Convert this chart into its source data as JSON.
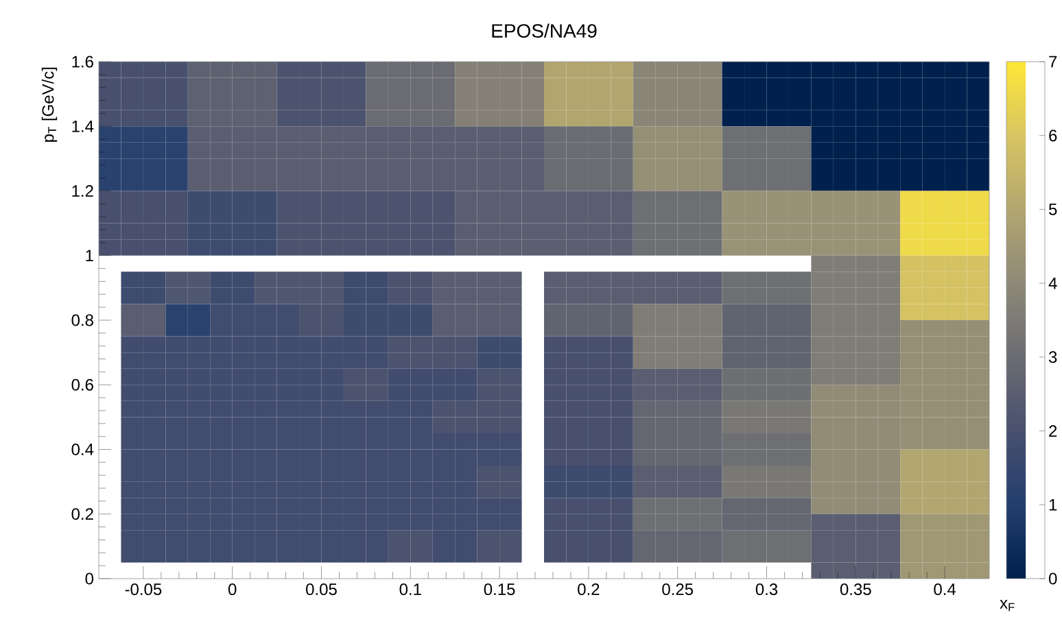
{
  "chart_data": {
    "type": "heatmap",
    "title": "EPOS/NA49",
    "xlabel": "x$_{F}$",
    "ylabel": "p$_{T}$ [GeV/c]",
    "xlim": [
      -0.075,
      0.425
    ],
    "xticks": [
      -0.05,
      0,
      0.05,
      0.1,
      0.15,
      0.2,
      0.25,
      0.3,
      0.35,
      0.4
    ],
    "ylim": [
      0,
      1.6
    ],
    "yticks": [
      0,
      0.2,
      0.4,
      0.6,
      0.8,
      1,
      1.2,
      1.4,
      1.6
    ],
    "clim": [
      0,
      7
    ],
    "cticks": [
      0,
      1,
      2,
      3,
      4,
      5,
      6,
      7
    ],
    "cells": [
      [
        2.0,
        2.0,
        2.0,
        2.0,
        2.6,
        2.6,
        2.6,
        2.6,
        2.1,
        2.1,
        2.1,
        2.1,
        3.0,
        3.0,
        3.0,
        3.0,
        3.7,
        3.7,
        3.7,
        3.7,
        5.0,
        5.0,
        5.0,
        5.0,
        3.9,
        3.9,
        3.9,
        3.9,
        0,
        0,
        0,
        0,
        0,
        0,
        0,
        0,
        0,
        0,
        0,
        0
      ],
      [
        2.0,
        2.0,
        2.0,
        2.0,
        2.6,
        2.6,
        2.6,
        2.6,
        2.1,
        2.1,
        2.1,
        2.1,
        3.0,
        3.0,
        3.0,
        3.0,
        3.7,
        3.7,
        3.7,
        3.7,
        5.0,
        5.0,
        5.0,
        5.0,
        3.9,
        3.9,
        3.9,
        3.9,
        0,
        0,
        0,
        0,
        0,
        0,
        0,
        0,
        0,
        0,
        0,
        0
      ],
      [
        2.0,
        2.0,
        2.0,
        2.0,
        2.6,
        2.6,
        2.6,
        2.6,
        2.1,
        2.1,
        2.1,
        2.1,
        3.0,
        3.0,
        3.0,
        3.0,
        3.7,
        3.7,
        3.7,
        3.7,
        5.0,
        5.0,
        5.0,
        5.0,
        3.9,
        3.9,
        3.9,
        3.9,
        0,
        0,
        0,
        0,
        0,
        0,
        0,
        0,
        0,
        0,
        0,
        0
      ],
      [
        2.0,
        2.0,
        2.0,
        2.0,
        2.6,
        2.6,
        2.6,
        2.6,
        2.1,
        2.1,
        2.1,
        2.1,
        3.0,
        3.0,
        3.0,
        3.0,
        3.7,
        3.7,
        3.7,
        3.7,
        5.0,
        5.0,
        5.0,
        5.0,
        3.9,
        3.9,
        3.9,
        3.9,
        0,
        0,
        0,
        0,
        0,
        0,
        0,
        0,
        0,
        0,
        0,
        0
      ],
      [
        1.2,
        1.2,
        1.2,
        1.2,
        2.5,
        2.5,
        2.5,
        2.5,
        2.5,
        2.5,
        2.5,
        2.5,
        2.5,
        2.5,
        2.5,
        2.5,
        2.5,
        2.5,
        2.5,
        2.5,
        3.0,
        3.0,
        3.0,
        3.0,
        4.2,
        4.2,
        4.2,
        4.2,
        3.1,
        3.1,
        3.1,
        3.1,
        0,
        0,
        0,
        0,
        0,
        0,
        0,
        0
      ],
      [
        1.2,
        1.2,
        1.2,
        1.2,
        2.5,
        2.5,
        2.5,
        2.5,
        2.5,
        2.5,
        2.5,
        2.5,
        2.5,
        2.5,
        2.5,
        2.5,
        2.5,
        2.5,
        2.5,
        2.5,
        3.0,
        3.0,
        3.0,
        3.0,
        4.2,
        4.2,
        4.2,
        4.2,
        3.1,
        3.1,
        3.1,
        3.1,
        0,
        0,
        0,
        0,
        0,
        0,
        0,
        0
      ],
      [
        1.2,
        1.2,
        1.2,
        1.2,
        2.5,
        2.5,
        2.5,
        2.5,
        2.5,
        2.5,
        2.5,
        2.5,
        2.5,
        2.5,
        2.5,
        2.5,
        2.5,
        2.5,
        2.5,
        2.5,
        3.0,
        3.0,
        3.0,
        3.0,
        4.2,
        4.2,
        4.2,
        4.2,
        3.1,
        3.1,
        3.1,
        3.1,
        0,
        0,
        0,
        0,
        0,
        0,
        0,
        0
      ],
      [
        1.2,
        1.2,
        1.2,
        1.2,
        2.5,
        2.5,
        2.5,
        2.5,
        2.5,
        2.5,
        2.5,
        2.5,
        2.5,
        2.5,
        2.5,
        2.5,
        2.5,
        2.5,
        2.5,
        2.5,
        3.0,
        3.0,
        3.0,
        3.0,
        4.2,
        4.2,
        4.2,
        4.2,
        3.1,
        3.1,
        3.1,
        3.1,
        0,
        0,
        0,
        0,
        0,
        0,
        0,
        0
      ],
      [
        2.0,
        2.0,
        2.0,
        2.0,
        1.7,
        1.7,
        1.7,
        1.7,
        2.1,
        2.1,
        2.1,
        2.1,
        2.1,
        2.1,
        2.1,
        2.1,
        2.5,
        2.5,
        2.5,
        2.5,
        2.5,
        2.5,
        2.5,
        2.5,
        3.1,
        3.1,
        3.1,
        3.1,
        4.3,
        4.3,
        4.3,
        4.3,
        4.3,
        4.3,
        4.3,
        4.3,
        6.6,
        6.6,
        6.6,
        6.6
      ],
      [
        2.0,
        2.0,
        2.0,
        2.0,
        1.7,
        1.7,
        1.7,
        1.7,
        2.1,
        2.1,
        2.1,
        2.1,
        2.1,
        2.1,
        2.1,
        2.1,
        2.5,
        2.5,
        2.5,
        2.5,
        2.5,
        2.5,
        2.5,
        2.5,
        3.1,
        3.1,
        3.1,
        3.1,
        4.3,
        4.3,
        4.3,
        4.3,
        4.3,
        4.3,
        4.3,
        4.3,
        6.6,
        6.6,
        6.6,
        6.6
      ],
      [
        2.0,
        2.0,
        2.0,
        2.0,
        1.7,
        1.7,
        1.7,
        1.7,
        2.1,
        2.1,
        2.1,
        2.1,
        2.1,
        2.1,
        2.1,
        2.1,
        2.5,
        2.5,
        2.5,
        2.5,
        2.5,
        2.5,
        2.5,
        2.5,
        3.1,
        3.1,
        3.1,
        3.1,
        4.3,
        4.3,
        4.3,
        4.3,
        4.3,
        4.3,
        4.3,
        4.3,
        6.6,
        6.6,
        6.6,
        6.6
      ],
      [
        2.0,
        2.0,
        2.0,
        2.0,
        1.7,
        1.7,
        1.7,
        1.7,
        2.1,
        2.1,
        2.1,
        2.1,
        2.1,
        2.1,
        2.1,
        2.1,
        2.5,
        2.5,
        2.5,
        2.5,
        2.5,
        2.5,
        2.5,
        2.5,
        3.1,
        3.1,
        3.1,
        3.1,
        4.3,
        4.3,
        4.3,
        4.3,
        4.3,
        4.3,
        4.3,
        4.3,
        6.6,
        6.6,
        6.6,
        6.6
      ],
      [
        null,
        null,
        null,
        null,
        null,
        null,
        null,
        null,
        null,
        null,
        null,
        null,
        null,
        null,
        null,
        null,
        null,
        null,
        null,
        null,
        null,
        null,
        null,
        null,
        null,
        null,
        null,
        null,
        null,
        null,
        null,
        null,
        3.6,
        3.6,
        3.6,
        3.6,
        5.9,
        5.9,
        5.9,
        5.9
      ],
      [
        null,
        1.7,
        1.7,
        2.2,
        2.2,
        1.7,
        1.7,
        2.2,
        2.2,
        2.2,
        2.2,
        1.7,
        1.7,
        2.1,
        2.1,
        2.5,
        2.5,
        2.5,
        2.5,
        null,
        2.5,
        2.5,
        2.5,
        2.5,
        2.5,
        2.5,
        2.5,
        2.5,
        3.1,
        3.1,
        3.1,
        3.1,
        3.6,
        3.6,
        3.6,
        3.6,
        5.9,
        5.9,
        5.9,
        5.9
      ],
      [
        null,
        1.7,
        1.7,
        2.2,
        2.2,
        1.7,
        1.7,
        2.2,
        2.2,
        2.2,
        2.2,
        1.7,
        1.7,
        2.1,
        2.1,
        2.5,
        2.5,
        2.5,
        2.5,
        null,
        2.5,
        2.5,
        2.5,
        2.5,
        2.5,
        2.5,
        2.5,
        2.5,
        3.1,
        3.1,
        3.1,
        3.1,
        3.6,
        3.6,
        3.6,
        3.6,
        5.9,
        5.9,
        5.9,
        5.9
      ],
      [
        null,
        2.5,
        2.5,
        1.2,
        1.2,
        1.8,
        1.8,
        1.8,
        1.8,
        2.1,
        2.1,
        1.7,
        1.7,
        1.7,
        1.7,
        2.5,
        2.5,
        2.5,
        2.5,
        null,
        2.7,
        2.7,
        2.7,
        2.7,
        3.6,
        3.6,
        3.6,
        3.6,
        2.7,
        2.7,
        2.7,
        2.7,
        3.6,
        3.6,
        3.6,
        3.6,
        5.9,
        5.9,
        5.9,
        5.9
      ],
      [
        null,
        2.5,
        2.5,
        1.2,
        1.2,
        1.8,
        1.8,
        1.8,
        1.8,
        2.1,
        2.1,
        1.7,
        1.7,
        1.7,
        1.7,
        2.5,
        2.5,
        2.5,
        2.5,
        null,
        2.7,
        2.7,
        2.7,
        2.7,
        3.6,
        3.6,
        3.6,
        3.6,
        2.7,
        2.7,
        2.7,
        2.7,
        3.6,
        3.6,
        3.6,
        3.6,
        4.2,
        4.2,
        4.2,
        4.2
      ],
      [
        null,
        1.8,
        1.8,
        1.8,
        1.8,
        1.8,
        1.8,
        1.8,
        1.8,
        1.8,
        1.8,
        1.8,
        1.8,
        2.1,
        2.1,
        2.1,
        2.1,
        1.7,
        1.7,
        null,
        2.0,
        2.0,
        2.0,
        2.0,
        3.6,
        3.6,
        3.6,
        3.6,
        2.7,
        2.7,
        2.7,
        2.7,
        3.6,
        3.6,
        3.6,
        3.6,
        4.2,
        4.2,
        4.2,
        4.2
      ],
      [
        null,
        1.8,
        1.8,
        1.8,
        1.8,
        1.8,
        1.8,
        1.8,
        1.8,
        1.8,
        1.8,
        1.8,
        1.8,
        2.1,
        2.1,
        2.1,
        2.1,
        1.7,
        1.7,
        null,
        2.0,
        2.0,
        2.0,
        2.0,
        3.6,
        3.6,
        3.6,
        3.6,
        2.7,
        2.7,
        2.7,
        2.7,
        3.6,
        3.6,
        3.6,
        3.6,
        4.2,
        4.2,
        4.2,
        4.2
      ],
      [
        null,
        1.8,
        1.8,
        1.8,
        1.8,
        1.8,
        1.8,
        1.8,
        1.8,
        1.8,
        1.8,
        2.1,
        2.1,
        1.8,
        1.8,
        1.8,
        1.8,
        2.1,
        2.1,
        null,
        2.0,
        2.0,
        2.0,
        2.0,
        2.5,
        2.5,
        2.5,
        2.5,
        3.1,
        3.1,
        3.1,
        3.1,
        3.6,
        3.6,
        3.6,
        3.6,
        4.2,
        4.2,
        4.2,
        4.2
      ],
      [
        null,
        1.8,
        1.8,
        1.8,
        1.8,
        1.8,
        1.8,
        1.8,
        1.8,
        1.8,
        1.8,
        2.1,
        2.1,
        1.8,
        1.8,
        1.8,
        1.8,
        2.1,
        2.1,
        null,
        2.0,
        2.0,
        2.0,
        2.0,
        2.5,
        2.5,
        2.5,
        2.5,
        3.1,
        3.1,
        3.1,
        3.1,
        4.1,
        4.1,
        4.1,
        4.1,
        4.2,
        4.2,
        4.2,
        4.2
      ],
      [
        null,
        1.8,
        1.8,
        1.8,
        1.8,
        1.8,
        1.8,
        1.8,
        1.8,
        1.8,
        1.8,
        1.8,
        1.8,
        1.8,
        1.8,
        2.1,
        2.1,
        2.1,
        2.1,
        null,
        2.0,
        2.0,
        2.0,
        2.0,
        2.8,
        2.8,
        2.8,
        2.8,
        3.4,
        3.4,
        3.4,
        3.4,
        4.1,
        4.1,
        4.1,
        4.1,
        4.2,
        4.2,
        4.2,
        4.2
      ],
      [
        null,
        1.8,
        1.8,
        1.8,
        1.8,
        1.8,
        1.8,
        1.8,
        1.8,
        1.8,
        1.8,
        1.8,
        1.8,
        1.8,
        1.8,
        2.1,
        2.1,
        2.1,
        2.1,
        null,
        2.0,
        2.0,
        2.0,
        2.0,
        2.8,
        2.8,
        2.8,
        2.8,
        3.4,
        3.4,
        3.4,
        3.4,
        4.1,
        4.1,
        4.1,
        4.1,
        4.2,
        4.2,
        4.2,
        4.2
      ],
      [
        null,
        1.8,
        1.8,
        1.8,
        1.8,
        1.8,
        1.8,
        1.8,
        1.8,
        1.8,
        1.8,
        1.8,
        1.8,
        1.8,
        1.8,
        1.8,
        1.8,
        1.8,
        1.8,
        null,
        2.0,
        2.0,
        2.0,
        2.0,
        2.8,
        2.8,
        2.8,
        2.8,
        3.1,
        3.1,
        3.1,
        3.1,
        4.1,
        4.1,
        4.1,
        4.1,
        4.2,
        4.2,
        4.2,
        4.2
      ],
      [
        null,
        1.8,
        1.8,
        1.8,
        1.8,
        1.8,
        1.8,
        1.8,
        1.8,
        1.8,
        1.8,
        1.8,
        1.8,
        1.8,
        1.8,
        1.8,
        1.8,
        1.8,
        1.8,
        null,
        2.0,
        2.0,
        2.0,
        2.0,
        2.8,
        2.8,
        2.8,
        2.8,
        3.1,
        3.1,
        3.1,
        3.1,
        4.1,
        4.1,
        4.1,
        4.1,
        5.0,
        5.0,
        5.0,
        5.0
      ],
      [
        null,
        1.8,
        1.8,
        1.8,
        1.8,
        1.8,
        1.8,
        1.8,
        1.8,
        1.8,
        1.8,
        1.8,
        1.8,
        1.8,
        1.8,
        1.8,
        1.8,
        2.1,
        2.1,
        null,
        1.7,
        1.7,
        1.7,
        1.7,
        2.5,
        2.5,
        2.5,
        2.5,
        3.4,
        3.4,
        3.4,
        3.4,
        4.1,
        4.1,
        4.1,
        4.1,
        5.0,
        5.0,
        5.0,
        5.0
      ],
      [
        null,
        1.8,
        1.8,
        1.8,
        1.8,
        1.8,
        1.8,
        1.8,
        1.8,
        1.8,
        1.8,
        1.8,
        1.8,
        1.8,
        1.8,
        1.8,
        1.8,
        2.1,
        2.1,
        null,
        1.7,
        1.7,
        1.7,
        1.7,
        2.5,
        2.5,
        2.5,
        2.5,
        3.4,
        3.4,
        3.4,
        3.4,
        4.1,
        4.1,
        4.1,
        4.1,
        5.0,
        5.0,
        5.0,
        5.0
      ],
      [
        null,
        1.8,
        1.8,
        1.8,
        1.8,
        1.8,
        1.8,
        1.8,
        1.8,
        1.8,
        1.8,
        1.8,
        1.8,
        1.8,
        1.8,
        1.8,
        1.8,
        1.8,
        1.8,
        null,
        2.0,
        2.0,
        2.0,
        2.0,
        3.1,
        3.1,
        3.1,
        3.1,
        2.8,
        2.8,
        2.8,
        2.8,
        4.1,
        4.1,
        4.1,
        4.1,
        5.0,
        5.0,
        5.0,
        5.0
      ],
      [
        null,
        1.8,
        1.8,
        1.8,
        1.8,
        1.8,
        1.8,
        1.8,
        1.8,
        1.8,
        1.8,
        1.8,
        1.8,
        1.8,
        1.8,
        1.8,
        1.8,
        1.8,
        1.8,
        null,
        2.0,
        2.0,
        2.0,
        2.0,
        3.1,
        3.1,
        3.1,
        3.1,
        2.8,
        2.8,
        2.8,
        2.8,
        2.5,
        2.5,
        2.5,
        2.5,
        4.5,
        4.5,
        4.5,
        4.5
      ],
      [
        null,
        1.8,
        1.8,
        1.8,
        1.8,
        1.8,
        1.8,
        1.8,
        1.8,
        1.8,
        1.8,
        1.8,
        1.8,
        2.1,
        2.1,
        1.8,
        1.8,
        2.1,
        2.1,
        null,
        2.0,
        2.0,
        2.0,
        2.0,
        2.8,
        2.8,
        2.8,
        2.8,
        3.1,
        3.1,
        3.1,
        3.1,
        2.5,
        2.5,
        2.5,
        2.5,
        4.5,
        4.5,
        4.5,
        4.5
      ],
      [
        null,
        1.8,
        1.8,
        1.8,
        1.8,
        1.8,
        1.8,
        1.8,
        1.8,
        1.8,
        1.8,
        1.8,
        1.8,
        2.1,
        2.1,
        1.8,
        1.8,
        2.1,
        2.1,
        null,
        2.0,
        2.0,
        2.0,
        2.0,
        2.8,
        2.8,
        2.8,
        2.8,
        3.1,
        3.1,
        3.1,
        3.1,
        2.5,
        2.5,
        2.5,
        2.5,
        4.5,
        4.5,
        4.5,
        4.5
      ],
      [
        null,
        null,
        null,
        null,
        null,
        null,
        null,
        null,
        null,
        null,
        null,
        null,
        null,
        null,
        null,
        null,
        null,
        null,
        null,
        null,
        null,
        null,
        null,
        null,
        null,
        null,
        null,
        null,
        null,
        null,
        null,
        null,
        2.5,
        2.5,
        2.5,
        2.5,
        4.5,
        4.5,
        4.5,
        4.5
      ]
    ]
  }
}
